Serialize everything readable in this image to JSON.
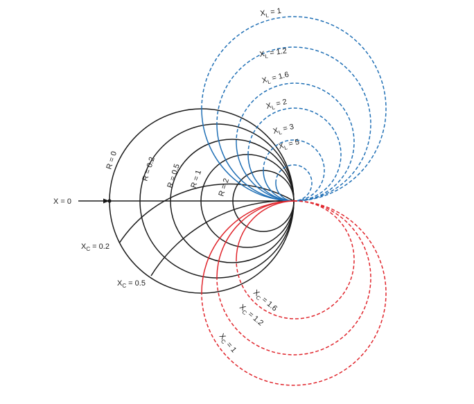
{
  "colors": {
    "black": "#1a1a1a",
    "inductive": "#1f6fb5",
    "capacitive": "#e0242b"
  },
  "x_axis_label": "X = 0",
  "resistance_labels": [
    {
      "text": "R = 0"
    },
    {
      "text": "R = 0.2"
    },
    {
      "text": "R = 0.5"
    },
    {
      "text": "R = 1"
    },
    {
      "text": "R = 2"
    }
  ],
  "capacitive_inner_labels": [
    {
      "main": "X",
      "sub": "C",
      "rest": " = 0.2"
    },
    {
      "main": "X",
      "sub": "C",
      "rest": " = 0.5"
    }
  ],
  "inductive_labels": [
    {
      "main": "X",
      "sub": "L",
      "rest": " = 1"
    },
    {
      "main": "X",
      "sub": "L",
      "rest": " = 1.2"
    },
    {
      "main": "X",
      "sub": "L",
      "rest": " = 1.6"
    },
    {
      "main": "X",
      "sub": "L",
      "rest": " = 2"
    },
    {
      "main": "X",
      "sub": "L",
      "rest": " = 3"
    },
    {
      "main": "X",
      "sub": "L",
      "rest": " = 5"
    }
  ],
  "capacitive_outer_labels": [
    {
      "main": "X",
      "sub": "C",
      "rest": " = 1.6"
    },
    {
      "main": "X",
      "sub": "C",
      "rest": " = 1.2"
    },
    {
      "main": "X",
      "sub": "C",
      "rest": " = 1"
    }
  ]
}
